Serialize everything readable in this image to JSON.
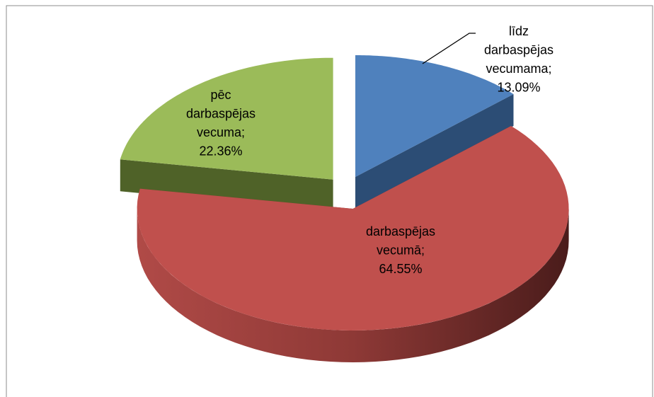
{
  "chart_data": {
    "type": "pie",
    "categories": [
      "līdz darbaspējas vecumama;",
      "darbaspējas vecumā;",
      "pēc darbaspējas vecuma;"
    ],
    "values": [
      13.09,
      64.55,
      22.36
    ],
    "value_labels": [
      "13.09%",
      "64.55%",
      "22.36%"
    ],
    "colors": [
      "#4f81bd",
      "#c0504d",
      "#9bbb59"
    ],
    "side_colors": [
      "#2c4d75",
      "#7a2e2c",
      "#4f6228"
    ],
    "style": "3d-exploded"
  }
}
